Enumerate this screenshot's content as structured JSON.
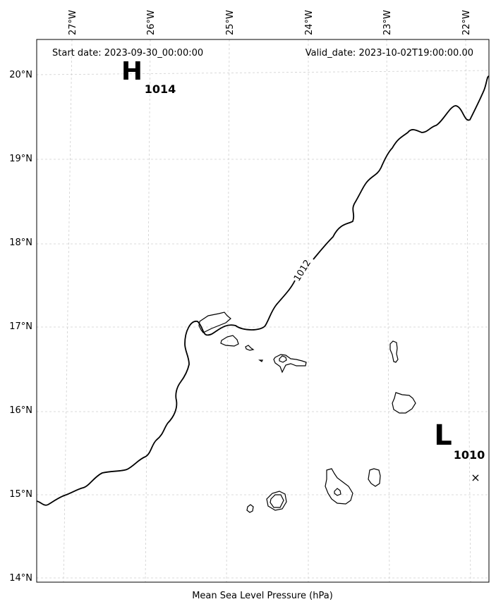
{
  "header": {
    "start_date": "Start date: 2023-09-30_00:00:00",
    "valid_date": "Valid_date: 2023-10-02T19:00:00.00"
  },
  "caption": "Mean Sea Level Pressure (hPa)",
  "longitude_labels": [
    "27°W",
    "26°W",
    "25°W",
    "24°W",
    "23°W",
    "22°W"
  ],
  "latitude_labels": [
    "20°N",
    "19°N",
    "18°N",
    "17°N",
    "16°N",
    "15°N",
    "14°N"
  ],
  "pressure_centers": {
    "high": {
      "symbol": "H",
      "value": "1014"
    },
    "low": {
      "symbol": "L",
      "value": "1010"
    }
  },
  "isobar_label": "1012",
  "storm_marker": "×"
}
